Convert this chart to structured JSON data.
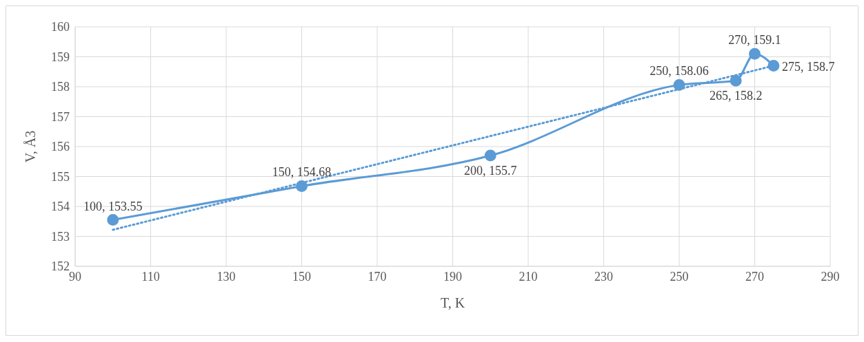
{
  "chart_data": {
    "type": "line",
    "xlabel": "T, K",
    "ylabel": "V, Å3",
    "xlim": [
      90,
      290
    ],
    "xticks": [
      90,
      110,
      130,
      150,
      170,
      190,
      210,
      230,
      250,
      270,
      290
    ],
    "ylim": [
      152,
      160
    ],
    "yticks": [
      152,
      153,
      154,
      155,
      156,
      157,
      158,
      159,
      160
    ],
    "grid": true,
    "legend": false,
    "series": [
      {
        "color": "#5b9bd5",
        "x": [
          100,
          150,
          200,
          250,
          265,
          270,
          275
        ],
        "values": [
          153.55,
          154.68,
          155.7,
          158.06,
          158.2,
          159.1,
          158.7
        ],
        "marker": "circle",
        "line_style": "solid",
        "value_labels": [
          "100, 153.55",
          "150, 154.68",
          "200, 155.7",
          "250, 158.06",
          "265, 158.2",
          "270, 159.1",
          "275, 158.7"
        ]
      },
      {
        "type": "line",
        "color": "#5b9bd5",
        "x": [
          100,
          275
        ],
        "values": [
          153.22,
          158.7
        ],
        "marker": "none",
        "line_style": "dotted"
      }
    ]
  }
}
